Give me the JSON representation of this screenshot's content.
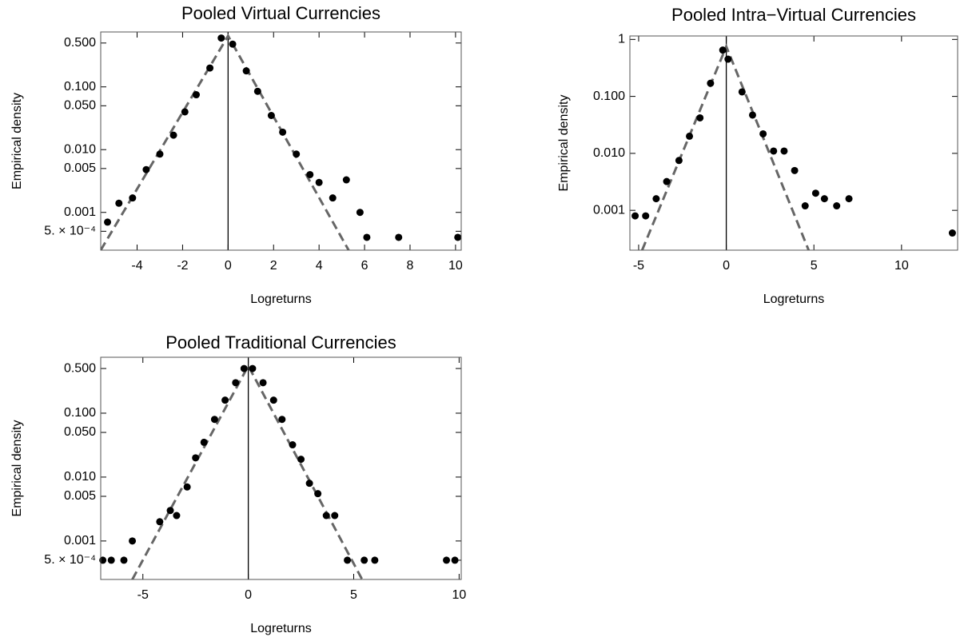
{
  "chart_data": [
    {
      "type": "scatter",
      "title": "Pooled Virtual Currencies",
      "xlabel": "Logreturns",
      "ylabel": "Empirical density",
      "log_y": true,
      "point_color": "#000000",
      "fit_color": "#666666",
      "xlim": [
        -5.6,
        10.25
      ],
      "xticks": [
        -4,
        -2,
        0,
        2,
        4,
        6,
        8,
        10
      ],
      "ylim": [
        0.00025,
        0.75
      ],
      "yticks": [
        {
          "value": 0.5,
          "label": "0.500"
        },
        {
          "value": 0.1,
          "label": "0.100"
        },
        {
          "value": 0.05,
          "label": "0.050"
        },
        {
          "value": 0.01,
          "label": "0.010"
        },
        {
          "value": 0.005,
          "label": "0.005"
        },
        {
          "value": 0.001,
          "label": "0.001"
        },
        {
          "value": 0.0005,
          "label": "5. × 10⁻⁴"
        }
      ],
      "x": [
        -5.3,
        -4.8,
        -4.2,
        -3.6,
        -3.0,
        -2.4,
        -1.9,
        -1.4,
        -0.8,
        -0.3,
        0.2,
        0.8,
        1.3,
        1.9,
        2.4,
        3.0,
        3.6,
        4.0,
        4.6,
        5.2,
        5.8,
        6.1,
        7.5,
        10.1
      ],
      "values": [
        0.0007,
        0.0014,
        0.0017,
        0.0048,
        0.0085,
        0.017,
        0.04,
        0.075,
        0.2,
        0.6,
        0.48,
        0.18,
        0.085,
        0.035,
        0.019,
        0.0085,
        0.004,
        0.003,
        0.0017,
        0.0033,
        0.001,
        0.0004,
        0.0004,
        0.0004
      ],
      "fit": {
        "x": [
          -5.6,
          0,
          5.3
        ],
        "values": [
          0.00025,
          0.65,
          0.00025
        ]
      }
    },
    {
      "type": "scatter",
      "title": "Pooled Intra−Virtual Currencies",
      "xlabel": "Logreturns",
      "ylabel": "Empirical density",
      "log_y": true,
      "point_color": "#000000",
      "fit_color": "#666666",
      "xlim": [
        -5.5,
        13.2
      ],
      "xticks": [
        -5,
        0,
        5,
        10
      ],
      "ylim": [
        0.0002,
        1.15
      ],
      "yticks": [
        1,
        {
          "value": 0.1,
          "label": "0.100"
        },
        {
          "value": 0.01,
          "label": "0.010"
        },
        {
          "value": 0.001,
          "label": "0.001"
        }
      ],
      "x": [
        -5.2,
        -4.6,
        -4.0,
        -3.4,
        -2.7,
        -2.1,
        -1.5,
        -0.9,
        -0.2,
        0.1,
        0.9,
        1.5,
        2.1,
        2.7,
        3.3,
        3.9,
        4.5,
        5.1,
        5.6,
        6.3,
        7.0,
        12.9
      ],
      "values": [
        0.0008,
        0.0008,
        0.0016,
        0.0032,
        0.0075,
        0.02,
        0.042,
        0.17,
        0.65,
        0.45,
        0.12,
        0.047,
        0.022,
        0.011,
        0.011,
        0.005,
        0.0012,
        0.002,
        0.0016,
        0.0012,
        0.0016,
        0.0004
      ],
      "fit": {
        "x": [
          -4.8,
          0,
          4.7
        ],
        "values": [
          0.0002,
          0.75,
          0.0002
        ]
      }
    },
    {
      "type": "scatter",
      "title": "Pooled Traditional Currencies",
      "xlabel": "Logreturns",
      "ylabel": "Empirical density",
      "log_y": true,
      "point_color": "#000000",
      "fit_color": "#666666",
      "xlim": [
        -7,
        10.1
      ],
      "xticks": [
        -5,
        0,
        5,
        10
      ],
      "ylim": [
        0.00025,
        0.75
      ],
      "yticks": [
        {
          "value": 0.5,
          "label": "0.500"
        },
        {
          "value": 0.1,
          "label": "0.100"
        },
        {
          "value": 0.05,
          "label": "0.050"
        },
        {
          "value": 0.01,
          "label": "0.010"
        },
        {
          "value": 0.005,
          "label": "0.005"
        },
        {
          "value": 0.001,
          "label": "0.001"
        },
        {
          "value": 0.0005,
          "label": "5. × 10⁻⁴"
        }
      ],
      "x": [
        -6.9,
        -6.5,
        -5.9,
        -5.5,
        -4.2,
        -3.7,
        -3.4,
        -2.9,
        -2.5,
        -2.1,
        -1.6,
        -1.1,
        -0.6,
        -0.2,
        0.2,
        0.7,
        1.2,
        1.6,
        2.1,
        2.5,
        2.9,
        3.3,
        3.7,
        4.1,
        4.7,
        5.5,
        6.0,
        9.4,
        9.8
      ],
      "values": [
        0.0005,
        0.0005,
        0.0005,
        0.001,
        0.002,
        0.003,
        0.0025,
        0.007,
        0.02,
        0.035,
        0.08,
        0.16,
        0.3,
        0.5,
        0.5,
        0.3,
        0.16,
        0.08,
        0.032,
        0.019,
        0.008,
        0.0055,
        0.0025,
        0.0025,
        0.0005,
        0.0005,
        0.0005,
        0.0005,
        0.0005
      ],
      "fit": {
        "x": [
          -5.5,
          0,
          5.4
        ],
        "values": [
          0.00025,
          0.55,
          0.00025
        ]
      }
    }
  ]
}
